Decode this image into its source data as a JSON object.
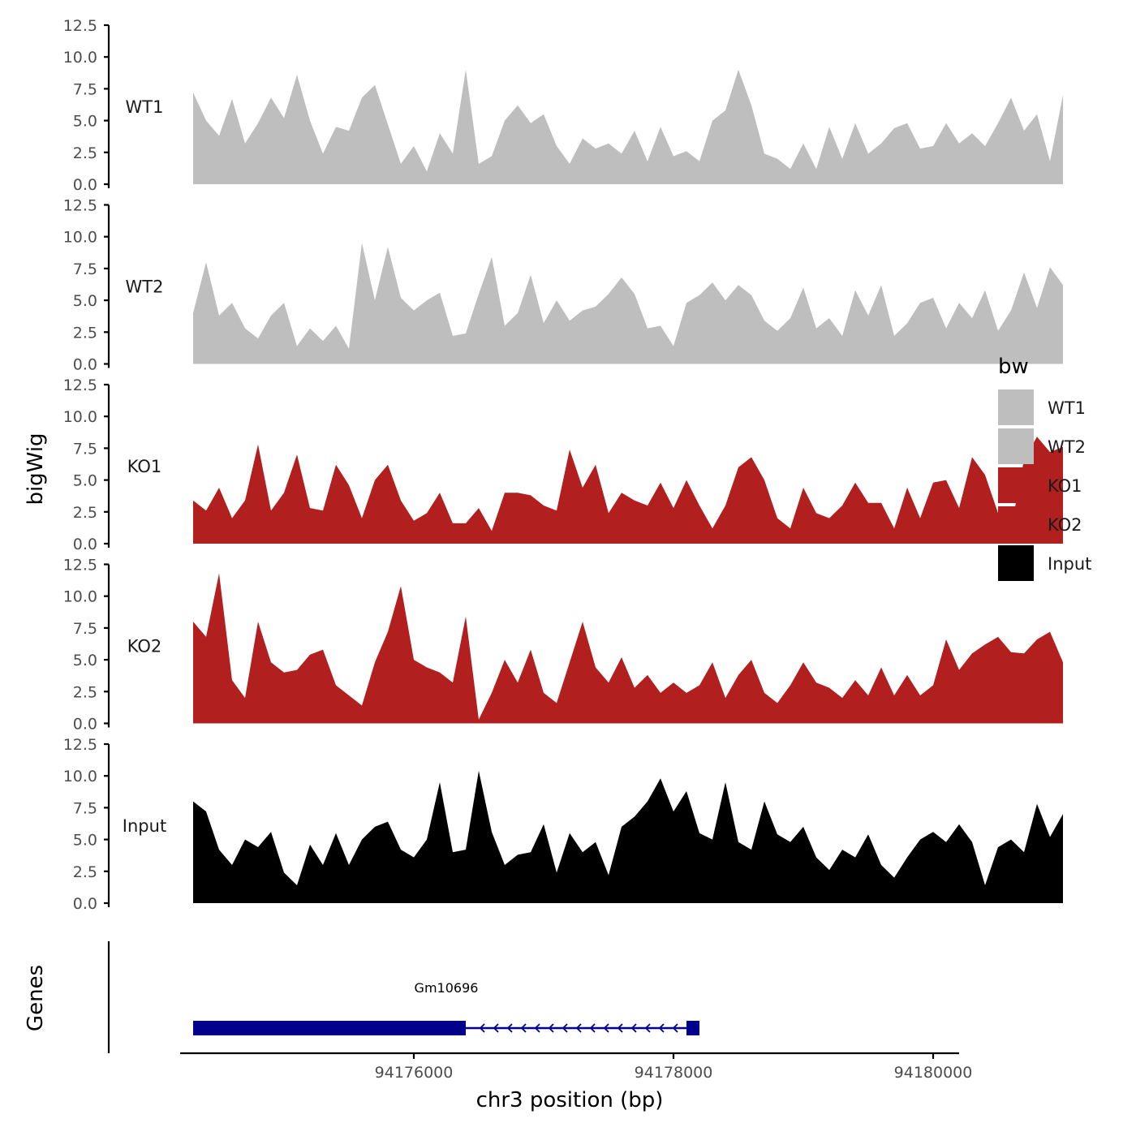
{
  "chart_data": {
    "type": "area",
    "ylabel": "bigWig",
    "xlabel": "chr3 position (bp)",
    "ylim": [
      0,
      12.5
    ],
    "y_ticks": [
      "0.0",
      "2.5",
      "5.0",
      "7.5",
      "10.0",
      "12.5"
    ],
    "x_range": [
      94174200,
      94180200
    ],
    "x_ticks": [
      94176000,
      94178000,
      94180000
    ],
    "x_tick_labels": [
      "94176000",
      "94178000",
      "94180000"
    ],
    "legend": {
      "title": "bw",
      "position": "right",
      "entries": [
        {
          "name": "WT1",
          "color": "#bebebe"
        },
        {
          "name": "WT2",
          "color": "#bebebe"
        },
        {
          "name": "KO1",
          "color": "#b21f1f"
        },
        {
          "name": "KO2",
          "color": "#b21f1f"
        },
        {
          "name": "Input",
          "color": "#000000"
        }
      ]
    },
    "x_start": 94174300,
    "x_step": 100,
    "tracks": [
      {
        "name": "WT1",
        "color": "#bebebe",
        "values": [
          7.2,
          5.0,
          3.8,
          6.7,
          3.2,
          4.8,
          6.8,
          5.2,
          8.6,
          5.0,
          2.4,
          4.5,
          4.2,
          6.8,
          7.8,
          4.7,
          1.6,
          3.0,
          1.0,
          4.0,
          2.4,
          9.0,
          1.6,
          2.2,
          5.0,
          6.2,
          4.8,
          5.5,
          3.0,
          1.6,
          3.6,
          2.8,
          3.2,
          2.4,
          4.2,
          1.8,
          4.5,
          2.2,
          2.6,
          1.8,
          5.0,
          5.8,
          9.0,
          6.2,
          2.4,
          2.0,
          1.2,
          3.2,
          1.2,
          4.5,
          2.0,
          4.8,
          2.4,
          3.2,
          4.4,
          4.8,
          2.8,
          3.0,
          4.8,
          3.2,
          4.0,
          3.0,
          4.8,
          6.8,
          4.2,
          5.5,
          1.8,
          7.0
        ],
        "labels": {}
      },
      {
        "name": "WT2",
        "color": "#bebebe",
        "values": [
          4.0,
          8.0,
          3.8,
          4.8,
          2.8,
          2.0,
          3.8,
          4.8,
          1.4,
          2.8,
          1.8,
          3.0,
          1.2,
          9.5,
          5.0,
          9.2,
          5.2,
          4.2,
          5.0,
          5.6,
          2.2,
          2.4,
          5.5,
          8.4,
          3.0,
          4.0,
          7.0,
          3.2,
          5.0,
          3.4,
          4.2,
          4.5,
          5.5,
          6.8,
          5.5,
          2.8,
          3.0,
          1.4,
          4.8,
          5.4,
          6.4,
          5.0,
          6.2,
          5.4,
          3.4,
          2.6,
          3.6,
          6.0,
          2.8,
          3.6,
          2.2,
          5.8,
          3.8,
          6.2,
          2.2,
          3.2,
          4.8,
          5.2,
          2.8,
          4.8,
          3.6,
          5.8,
          2.6,
          4.2,
          7.2,
          4.4,
          7.6,
          6.2
        ],
        "labels": {}
      },
      {
        "name": "KO1",
        "color": "#b21f1f",
        "values": [
          3.4,
          2.6,
          4.4,
          2.0,
          3.4,
          7.8,
          2.6,
          4.0,
          7.0,
          2.8,
          2.6,
          6.2,
          4.6,
          2.0,
          5.0,
          6.2,
          3.4,
          1.8,
          2.4,
          4.0,
          1.6,
          1.6,
          2.8,
          1.0,
          4.0,
          4.0,
          3.8,
          3.0,
          2.6,
          7.4,
          4.4,
          6.2,
          2.4,
          4.0,
          3.4,
          3.0,
          4.8,
          2.8,
          5.0,
          3.0,
          1.2,
          3.0,
          6.0,
          6.8,
          5.0,
          2.0,
          1.2,
          4.4,
          2.4,
          2.0,
          3.0,
          4.8,
          3.2,
          3.2,
          1.2,
          4.4,
          2.0,
          4.8,
          5.0,
          2.8,
          6.8,
          5.4,
          2.4,
          1.2,
          6.6,
          8.4,
          7.2,
          7.6
        ],
        "labels": {}
      },
      {
        "name": "KO2",
        "color": "#b21f1f",
        "values": [
          8.0,
          6.8,
          11.8,
          3.4,
          2.0,
          8.0,
          4.8,
          4.0,
          4.2,
          5.4,
          5.8,
          3.0,
          2.2,
          1.4,
          4.8,
          7.2,
          10.8,
          5.0,
          4.4,
          4.0,
          3.2,
          8.4,
          0.3,
          2.4,
          5.0,
          3.2,
          5.8,
          2.4,
          1.6,
          4.8,
          8.0,
          4.4,
          3.2,
          5.2,
          2.8,
          3.8,
          2.4,
          3.2,
          2.4,
          3.0,
          4.8,
          2.0,
          3.8,
          5.0,
          2.4,
          1.6,
          3.0,
          4.8,
          3.2,
          2.8,
          2.0,
          3.4,
          2.2,
          4.4,
          2.2,
          3.8,
          2.2,
          3.0,
          6.6,
          4.2,
          5.5,
          6.2,
          6.8,
          5.6,
          5.5,
          6.6,
          7.2,
          4.8
        ],
        "labels": {}
      },
      {
        "name": "Input",
        "color": "#000000",
        "values": [
          8.0,
          7.2,
          4.2,
          3.0,
          5.0,
          4.4,
          5.6,
          2.4,
          1.4,
          4.6,
          3.0,
          5.5,
          3.0,
          5.0,
          6.0,
          6.4,
          4.2,
          3.6,
          5.0,
          9.5,
          4.0,
          4.2,
          10.4,
          5.6,
          3.0,
          3.8,
          4.0,
          6.2,
          2.4,
          5.5,
          4.0,
          4.8,
          2.2,
          6.0,
          6.8,
          8.0,
          9.8,
          7.2,
          8.8,
          5.5,
          5.0,
          9.5,
          4.8,
          4.2,
          8.0,
          5.4,
          4.8,
          6.0,
          3.6,
          2.6,
          4.2,
          3.6,
          5.4,
          3.0,
          2.0,
          3.6,
          5.0,
          5.6,
          4.8,
          6.2,
          4.8,
          1.4,
          4.4,
          5.0,
          4.0,
          7.8,
          5.2,
          7.0
        ],
        "labels": {}
      }
    ],
    "genes_track": {
      "label": "Genes",
      "genes": [
        {
          "name": "Gm10696",
          "start": 94174300,
          "end": 94178200,
          "strand": "-",
          "color": "#00008b",
          "exons": [
            [
              94174300,
              94176400
            ],
            [
              94178100,
              94178200
            ]
          ]
        }
      ]
    }
  }
}
